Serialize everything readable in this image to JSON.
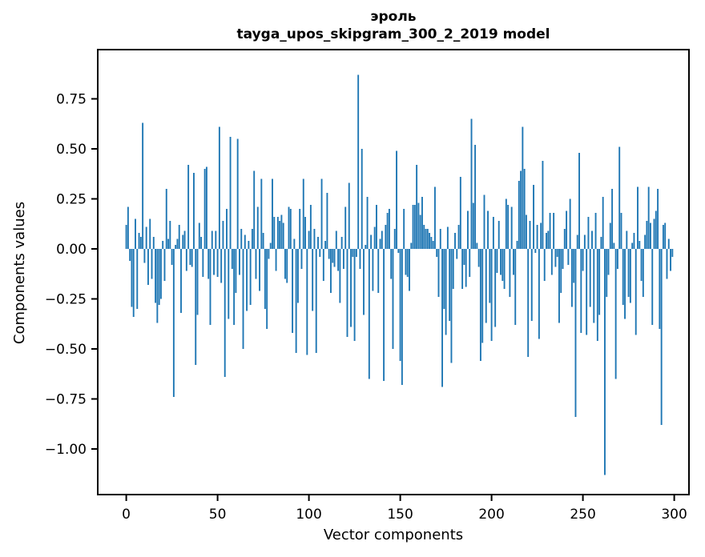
{
  "chart_data": {
    "type": "bar",
    "title": "эроль",
    "subtitle": "tayga_upos_skipgram_300_2_2019 model",
    "xlabel": "Vector components",
    "ylabel": "Components values",
    "n_components": 300,
    "x_is_index": true,
    "bar_color": "#1f77b4",
    "axis_color": "#000000",
    "background_color": "#ffffff",
    "grid": false,
    "legend": null,
    "xlim": [
      -15.6,
      308
    ],
    "ylim": [
      -1.23,
      1.0
    ],
    "xticks": [
      {
        "value": 0,
        "label": "0"
      },
      {
        "value": 50,
        "label": "50"
      },
      {
        "value": 100,
        "label": "100"
      },
      {
        "value": 150,
        "label": "150"
      },
      {
        "value": 200,
        "label": "200"
      },
      {
        "value": 250,
        "label": "250"
      },
      {
        "value": 300,
        "label": "300"
      }
    ],
    "yticks": [
      {
        "value": 0.75,
        "label": "0.75"
      },
      {
        "value": 0.5,
        "label": "0.50"
      },
      {
        "value": 0.25,
        "label": "0.25"
      },
      {
        "value": 0.0,
        "label": "0.00"
      },
      {
        "value": -0.25,
        "label": "−0.25"
      },
      {
        "value": -0.5,
        "label": "−0.50"
      },
      {
        "value": -0.75,
        "label": "−0.75"
      },
      {
        "value": -1.0,
        "label": "−1.00"
      }
    ],
    "values": [
      0.12,
      0.21,
      -0.06,
      -0.29,
      -0.34,
      0.15,
      -0.3,
      0.08,
      0.06,
      0.63,
      -0.07,
      0.11,
      -0.18,
      0.15,
      -0.15,
      0.06,
      -0.27,
      -0.37,
      -0.28,
      -0.25,
      0.04,
      -0.16,
      0.3,
      0.05,
      0.14,
      -0.08,
      -0.74,
      0.02,
      0.05,
      0.12,
      -0.32,
      0.07,
      0.09,
      -0.11,
      0.42,
      -0.08,
      -0.09,
      0.38,
      -0.58,
      -0.33,
      0.13,
      0.06,
      -0.14,
      0.4,
      0.41,
      -0.15,
      -0.38,
      0.09,
      -0.13,
      0.09,
      -0.14,
      0.61,
      -0.17,
      0.14,
      -0.64,
      0.2,
      -0.35,
      0.56,
      -0.1,
      -0.38,
      -0.22,
      0.55,
      -0.13,
      0.1,
      -0.5,
      0.07,
      -0.31,
      0.04,
      -0.28,
      0.1,
      0.39,
      -0.15,
      0.21,
      -0.21,
      0.35,
      0.08,
      -0.3,
      -0.4,
      -0.05,
      0.03,
      0.35,
      0.16,
      -0.11,
      0.16,
      0.14,
      0.17,
      0.13,
      -0.15,
      -0.17,
      0.21,
      0.2,
      -0.42,
      0.05,
      -0.52,
      -0.27,
      0.2,
      -0.1,
      0.35,
      0.16,
      -0.53,
      0.09,
      0.22,
      -0.31,
      0.1,
      -0.52,
      0.06,
      -0.04,
      0.35,
      -0.16,
      0.04,
      0.28,
      -0.05,
      -0.22,
      -0.07,
      -0.09,
      0.09,
      -0.11,
      -0.27,
      0.06,
      -0.1,
      0.21,
      -0.44,
      0.33,
      -0.39,
      -0.04,
      -0.46,
      -0.04,
      0.87,
      -0.1,
      0.5,
      -0.33,
      0.02,
      0.26,
      -0.65,
      0.07,
      -0.21,
      0.11,
      0.22,
      -0.22,
      0.05,
      0.09,
      -0.66,
      0.12,
      0.18,
      0.2,
      -0.15,
      -0.5,
      0.1,
      0.49,
      -0.02,
      -0.56,
      -0.68,
      0.2,
      -0.13,
      -0.14,
      -0.21,
      0.03,
      0.22,
      0.22,
      0.42,
      0.23,
      0.17,
      0.26,
      0.12,
      0.1,
      0.1,
      0.08,
      0.06,
      0.04,
      0.31,
      -0.04,
      -0.24,
      0.1,
      -0.69,
      -0.3,
      -0.43,
      0.11,
      -0.36,
      -0.57,
      -0.2,
      0.08,
      -0.05,
      0.12,
      0.36,
      -0.2,
      -0.08,
      -0.19,
      0.19,
      -0.14,
      0.65,
      0.23,
      0.52,
      0.03,
      -0.09,
      -0.56,
      -0.47,
      0.27,
      -0.37,
      0.19,
      -0.27,
      -0.46,
      0.16,
      -0.39,
      -0.12,
      0.14,
      -0.13,
      -0.16,
      -0.2,
      0.25,
      0.22,
      -0.24,
      0.21,
      -0.13,
      -0.38,
      0.04,
      0.34,
      0.39,
      0.61,
      0.4,
      0.17,
      -0.54,
      0.14,
      -0.36,
      0.32,
      -0.02,
      0.12,
      -0.45,
      0.13,
      0.44,
      -0.16,
      0.08,
      0.09,
      0.18,
      -0.13,
      0.18,
      -0.09,
      -0.04,
      -0.37,
      -0.22,
      -0.1,
      0.1,
      0.19,
      -0.08,
      0.25,
      -0.29,
      -0.17,
      -0.84,
      0.07,
      0.48,
      -0.42,
      -0.11,
      0.07,
      -0.43,
      0.16,
      -0.29,
      0.09,
      -0.37,
      0.18,
      -0.46,
      -0.33,
      0.06,
      0.26,
      -1.13,
      -0.24,
      -0.13,
      0.13,
      0.3,
      0.03,
      -0.65,
      -0.1,
      0.51,
      0.18,
      -0.28,
      -0.35,
      0.09,
      -0.24,
      -0.27,
      0.03,
      0.08,
      -0.43,
      0.31,
      0.04,
      -0.16,
      -0.24,
      0.07,
      0.14,
      0.31,
      0.13,
      -0.38,
      0.15,
      0.19,
      0.3,
      -0.4,
      -0.88,
      0.12,
      0.13,
      -0.15,
      0.05,
      -0.11,
      -0.04
    ]
  }
}
